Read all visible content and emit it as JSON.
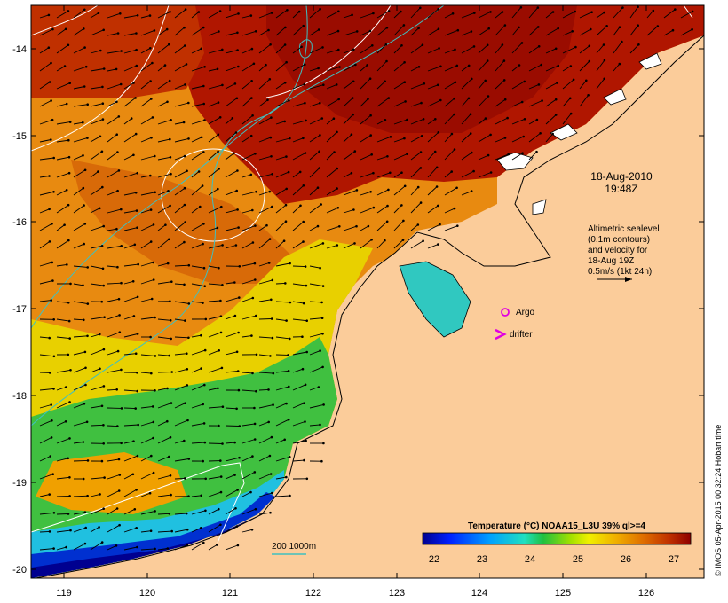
{
  "map": {
    "lon_ticks": [
      "119",
      "120",
      "121",
      "122",
      "123",
      "124",
      "125",
      "126"
    ],
    "lat_ticks": [
      "-14",
      "-15",
      "-16",
      "-17",
      "-18",
      "-19",
      "-20"
    ],
    "date_label": "18-Aug-2010",
    "time_label": "19:48Z",
    "altimetry_notes": [
      "Altimetric sealevel",
      "(0.1m contours)",
      "and velocity for",
      "18-Aug 19Z",
      "0.5m/s (1kt 24h)"
    ],
    "argo_label": "Argo",
    "drifter_label": "drifter",
    "isobath_label": "200  1000m",
    "colorbar": {
      "title": "Temperature (°C) NOAA15_L3U 39% ql>=4",
      "ticks": [
        "22",
        "23",
        "24",
        "25",
        "26",
        "27"
      ],
      "colors": [
        "#00008f",
        "#0020ff",
        "#00a0ff",
        "#20e0c0",
        "#20c040",
        "#a0e000",
        "#f0f000",
        "#f0b000",
        "#e07000",
        "#c03000",
        "#8f0000"
      ]
    },
    "credit": "© IMOS 05-Apr-2015 00:32:24 Hobart time",
    "colors": {
      "land": "#fbcc9a",
      "warm": "#c01800",
      "argo_marker": "#e000e0",
      "isobath": "#40c0c0"
    }
  }
}
